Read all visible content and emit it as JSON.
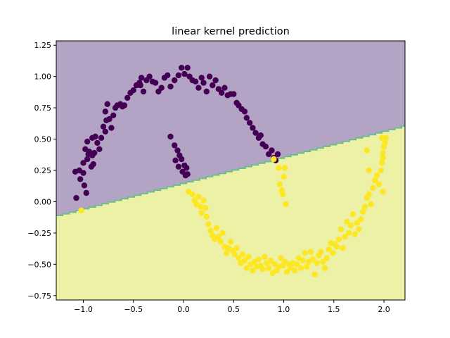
{
  "chart_data": {
    "type": "scatter",
    "title": "linear kernel prediction",
    "xlabel": "",
    "ylabel": "",
    "xlim": [
      -1.27,
      2.21
    ],
    "ylim": [
      -0.785,
      1.285
    ],
    "xticks": [
      -1.0,
      -0.5,
      0.0,
      0.5,
      1.0,
      1.5,
      2.0
    ],
    "xtick_labels": [
      "−1.0",
      "−0.5",
      "0.0",
      "0.5",
      "1.0",
      "1.5",
      "2.0"
    ],
    "yticks": [
      -0.75,
      -0.5,
      -0.25,
      0.0,
      0.25,
      0.5,
      0.75,
      1.0,
      1.25
    ],
    "ytick_labels": [
      "−0.75",
      "−0.50",
      "−0.25",
      "0.00",
      "0.25",
      "0.50",
      "0.75",
      "1.00",
      "1.25"
    ],
    "grid": false,
    "decision_boundary": {
      "slope": 0.207,
      "intercept": 0.153
    },
    "region_colors": {
      "class_0": "#b3a4c6",
      "class_1": "#ecf1a5",
      "boundary": "#6fbb8e"
    },
    "series": [
      {
        "color": "#440154",
        "points": [
          [
            -1.08,
            0.24
          ],
          [
            -1.04,
            0.25
          ],
          [
            -1.07,
            0.03
          ],
          [
            -1.0,
            0.23
          ],
          [
            -1.03,
            0.18
          ],
          [
            -0.99,
            0.13
          ],
          [
            -0.97,
            0.07
          ],
          [
            -1.0,
            0.31
          ],
          [
            -0.98,
            0.42
          ],
          [
            -0.96,
            0.48
          ],
          [
            -0.94,
            0.4
          ],
          [
            -0.95,
            0.38
          ],
          [
            -0.96,
            0.34
          ],
          [
            -0.92,
            0.28
          ],
          [
            -0.9,
            0.3
          ],
          [
            -0.91,
            0.37
          ],
          [
            -0.89,
            0.39
          ],
          [
            -0.91,
            0.51
          ],
          [
            -0.88,
            0.52
          ],
          [
            -0.86,
            0.47
          ],
          [
            -0.84,
            0.42
          ],
          [
            -0.82,
            0.51
          ],
          [
            -0.8,
            0.6
          ],
          [
            -0.78,
            0.56
          ],
          [
            -0.77,
            0.65
          ],
          [
            -0.78,
            0.72
          ],
          [
            -0.76,
            0.78
          ],
          [
            -0.74,
            0.66
          ],
          [
            -0.72,
            0.59
          ],
          [
            -0.7,
            0.69
          ],
          [
            -0.68,
            0.75
          ],
          [
            -0.66,
            0.77
          ],
          [
            -0.63,
            0.78
          ],
          [
            -0.61,
            0.76
          ],
          [
            -0.59,
            0.77
          ],
          [
            -0.56,
            0.83
          ],
          [
            -0.53,
            0.87
          ],
          [
            -0.5,
            0.89
          ],
          [
            -0.47,
            0.93
          ],
          [
            -0.44,
            0.95
          ],
          [
            -0.42,
            0.99
          ],
          [
            -0.43,
            0.93
          ],
          [
            -0.4,
            0.88
          ],
          [
            -0.37,
            0.97
          ],
          [
            -0.34,
            1.0
          ],
          [
            -0.31,
            0.96
          ],
          [
            -0.28,
            0.95
          ],
          [
            -0.25,
            0.88
          ],
          [
            -0.22,
            0.91
          ],
          [
            -0.19,
            0.99
          ],
          [
            -0.16,
            1.01
          ],
          [
            -0.13,
            0.92
          ],
          [
            -0.09,
            0.97
          ],
          [
            -0.05,
            1.01
          ],
          [
            -0.02,
            1.07
          ],
          [
            0.01,
            1.02
          ],
          [
            0.04,
            1.07
          ],
          [
            0.06,
            1.0
          ],
          [
            0.09,
            0.97
          ],
          [
            0.12,
            0.96
          ],
          [
            0.15,
            0.91
          ],
          [
            0.18,
            0.99
          ],
          [
            0.2,
            0.95
          ],
          [
            0.23,
            0.88
          ],
          [
            0.26,
            1.0
          ],
          [
            0.29,
            0.93
          ],
          [
            0.32,
            0.97
          ],
          [
            0.35,
            0.9
          ],
          [
            0.38,
            0.87
          ],
          [
            0.41,
            0.91
          ],
          [
            0.44,
            0.85
          ],
          [
            0.47,
            0.86
          ],
          [
            0.5,
            0.86
          ],
          [
            0.53,
            0.79
          ],
          [
            0.55,
            0.77
          ],
          [
            0.58,
            0.74
          ],
          [
            0.61,
            0.72
          ],
          [
            0.63,
            0.67
          ],
          [
            0.66,
            0.63
          ],
          [
            0.69,
            0.59
          ],
          [
            0.72,
            0.55
          ],
          [
            0.75,
            0.51
          ],
          [
            0.77,
            0.53
          ],
          [
            0.79,
            0.46
          ],
          [
            0.82,
            0.44
          ],
          [
            0.85,
            0.38
          ],
          [
            0.88,
            0.41
          ],
          [
            0.9,
            0.35
          ],
          [
            0.92,
            0.33
          ],
          [
            0.94,
            0.38
          ],
          [
            -0.13,
            0.52
          ],
          [
            -0.09,
            0.45
          ],
          [
            -0.06,
            0.41
          ],
          [
            -0.04,
            0.37
          ],
          [
            -0.02,
            0.34
          ],
          [
            0.01,
            0.29
          ],
          [
            0.03,
            0.27
          ],
          [
            0.04,
            0.22
          ],
          [
            -0.08,
            0.33
          ],
          [
            -0.05,
            0.28
          ],
          [
            -0.01,
            0.24
          ],
          [
            0.02,
            0.21
          ]
        ]
      },
      {
        "color": "#fde725",
        "points": [
          [
            -1.02,
            -0.07
          ],
          [
            0.05,
            0.08
          ],
          [
            0.09,
            0.06
          ],
          [
            0.11,
            0.01
          ],
          [
            0.13,
            -0.02
          ],
          [
            0.15,
            0.04
          ],
          [
            0.17,
            -0.04
          ],
          [
            0.18,
            -0.09
          ],
          [
            0.2,
            0.01
          ],
          [
            0.22,
            -0.05
          ],
          [
            0.23,
            -0.12
          ],
          [
            0.25,
            -0.18
          ],
          [
            0.27,
            -0.23
          ],
          [
            0.29,
            -0.27
          ],
          [
            0.31,
            -0.3
          ],
          [
            0.33,
            -0.21
          ],
          [
            0.35,
            -0.28
          ],
          [
            0.37,
            -0.32
          ],
          [
            0.39,
            -0.25
          ],
          [
            0.41,
            -0.36
          ],
          [
            0.43,
            -0.41
          ],
          [
            0.45,
            -0.37
          ],
          [
            0.47,
            -0.32
          ],
          [
            0.49,
            -0.39
          ],
          [
            0.51,
            -0.42
          ],
          [
            0.53,
            -0.37
          ],
          [
            0.55,
            -0.45
          ],
          [
            0.57,
            -0.49
          ],
          [
            0.59,
            -0.42
          ],
          [
            0.61,
            -0.47
          ],
          [
            0.63,
            -0.53
          ],
          [
            0.65,
            -0.44
          ],
          [
            0.67,
            -0.5
          ],
          [
            0.69,
            -0.55
          ],
          [
            0.71,
            -0.48
          ],
          [
            0.73,
            -0.52
          ],
          [
            0.75,
            -0.46
          ],
          [
            0.77,
            -0.51
          ],
          [
            0.79,
            -0.54
          ],
          [
            0.81,
            -0.44
          ],
          [
            0.83,
            -0.49
          ],
          [
            0.85,
            -0.53
          ],
          [
            0.87,
            -0.47
          ],
          [
            0.89,
            -0.57
          ],
          [
            0.91,
            -0.5
          ],
          [
            0.93,
            -0.55
          ],
          [
            0.95,
            -0.52
          ],
          [
            0.97,
            -0.45
          ],
          [
            0.99,
            -0.51
          ],
          [
            1.01,
            -0.48
          ],
          [
            1.03,
            -0.56
          ],
          [
            1.05,
            -0.5
          ],
          [
            1.07,
            -0.53
          ],
          [
            1.09,
            -0.49
          ],
          [
            1.11,
            -0.55
          ],
          [
            1.13,
            -0.5
          ],
          [
            1.15,
            -0.45
          ],
          [
            1.17,
            -0.53
          ],
          [
            1.19,
            -0.47
          ],
          [
            1.21,
            -0.41
          ],
          [
            1.23,
            -0.52
          ],
          [
            1.25,
            -0.48
          ],
          [
            1.27,
            -0.4
          ],
          [
            1.29,
            -0.46
          ],
          [
            1.31,
            -0.58
          ],
          [
            1.33,
            -0.49
          ],
          [
            1.35,
            -0.43
          ],
          [
            1.37,
            -0.4
          ],
          [
            1.39,
            -0.48
          ],
          [
            1.41,
            -0.53
          ],
          [
            1.43,
            -0.45
          ],
          [
            1.45,
            -0.38
          ],
          [
            1.47,
            -0.33
          ],
          [
            1.49,
            -0.41
          ],
          [
            1.51,
            -0.34
          ],
          [
            1.53,
            -0.36
          ],
          [
            1.55,
            -0.3
          ],
          [
            1.57,
            -0.22
          ],
          [
            1.59,
            -0.37
          ],
          [
            1.61,
            -0.28
          ],
          [
            1.63,
            -0.16
          ],
          [
            1.65,
            -0.25
          ],
          [
            1.67,
            -0.19
          ],
          [
            1.69,
            -0.1
          ],
          [
            1.71,
            -0.26
          ],
          [
            1.73,
            -0.17
          ],
          [
            1.75,
            -0.22
          ],
          [
            1.77,
            -0.14
          ],
          [
            1.79,
            -0.08
          ],
          [
            1.81,
            -0.04
          ],
          [
            1.83,
            0.03
          ],
          [
            1.85,
            0.06
          ],
          [
            1.87,
            -0.02
          ],
          [
            1.89,
            0.11
          ],
          [
            1.91,
            0.17
          ],
          [
            1.93,
            0.21
          ],
          [
            1.95,
            0.14
          ],
          [
            1.97,
            0.25
          ],
          [
            1.98,
            0.31
          ],
          [
            1.99,
            0.35
          ],
          [
            1.99,
            0.39
          ],
          [
            2.0,
            0.44
          ],
          [
            2.01,
            0.47
          ],
          [
            2.02,
            0.51
          ],
          [
            1.98,
            0.51
          ],
          [
            1.99,
            0.08
          ],
          [
            1.83,
            0.41
          ],
          [
            1.85,
            0.25
          ],
          [
            0.95,
            0.27
          ],
          [
            0.96,
            0.14
          ],
          [
            0.98,
            0.09
          ],
          [
            0.99,
            0.06
          ],
          [
            1.0,
            0.2
          ],
          [
            1.01,
            0.27
          ],
          [
            1.02,
            -0.02
          ],
          [
            0.9,
            0.34
          ]
        ]
      }
    ]
  }
}
